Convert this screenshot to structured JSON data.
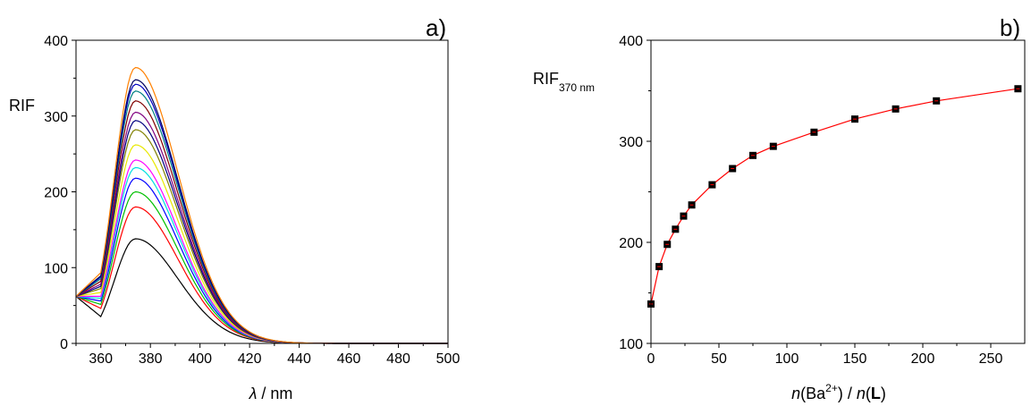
{
  "chart_data": [
    {
      "type": "line",
      "panel_label": "a)",
      "ylabel": "RIF",
      "xlabel": {
        "symbol": "λ",
        "unit": " / nm"
      },
      "xlim": [
        350,
        500
      ],
      "ylim": [
        0,
        400
      ],
      "xticks": [
        360,
        380,
        400,
        420,
        440,
        460,
        480,
        500
      ],
      "yticks": [
        0,
        100,
        200,
        300,
        400
      ],
      "x": [
        350,
        355,
        360,
        365,
        370,
        375,
        380,
        385,
        390,
        395,
        400,
        410,
        420,
        430,
        440,
        450,
        460,
        470,
        480,
        490,
        500
      ],
      "series": [
        {
          "color": "#000000",
          "peak": 138
        },
        {
          "color": "#ff0000",
          "peak": 180
        },
        {
          "color": "#00c000",
          "peak": 200
        },
        {
          "color": "#0000ff",
          "peak": 218
        },
        {
          "color": "#00e0e0",
          "peak": 232
        },
        {
          "color": "#ff00ff",
          "peak": 242
        },
        {
          "color": "#e8e800",
          "peak": 262
        },
        {
          "color": "#808000",
          "peak": 282
        },
        {
          "color": "#000080",
          "peak": 294
        },
        {
          "color": "#800080",
          "peak": 305
        },
        {
          "color": "#800000",
          "peak": 320
        },
        {
          "color": "#008080",
          "peak": 333
        },
        {
          "color": "#0000c0",
          "peak": 342
        },
        {
          "color": "#000060",
          "peak": 348
        },
        {
          "color": "#ff8000",
          "peak": 364
        }
      ]
    },
    {
      "type": "scatter",
      "panel_label": "b)",
      "ylabel": {
        "main": "RIF",
        "sub": "370 nm"
      },
      "xlabel": {
        "n1": "n",
        "inner1": "(Ba",
        "sup": "2+",
        "inner2": ") / ",
        "n2": "n",
        "paren_open": "(",
        "bold": "L",
        "paren_close": ")"
      },
      "xlim": [
        0,
        275
      ],
      "ylim": [
        100,
        400
      ],
      "xticks": [
        0,
        50,
        100,
        150,
        200,
        250
      ],
      "yticks": [
        100,
        200,
        300,
        400
      ],
      "fit_color": "#ff0000",
      "marker_color": "#000000",
      "x": [
        0,
        6,
        12,
        18,
        24,
        30,
        45,
        60,
        75,
        90,
        120,
        150,
        180,
        210,
        270
      ],
      "y": [
        139,
        176,
        198,
        213,
        226,
        237,
        257,
        273,
        286,
        295,
        309,
        322,
        332,
        340,
        352
      ]
    }
  ]
}
